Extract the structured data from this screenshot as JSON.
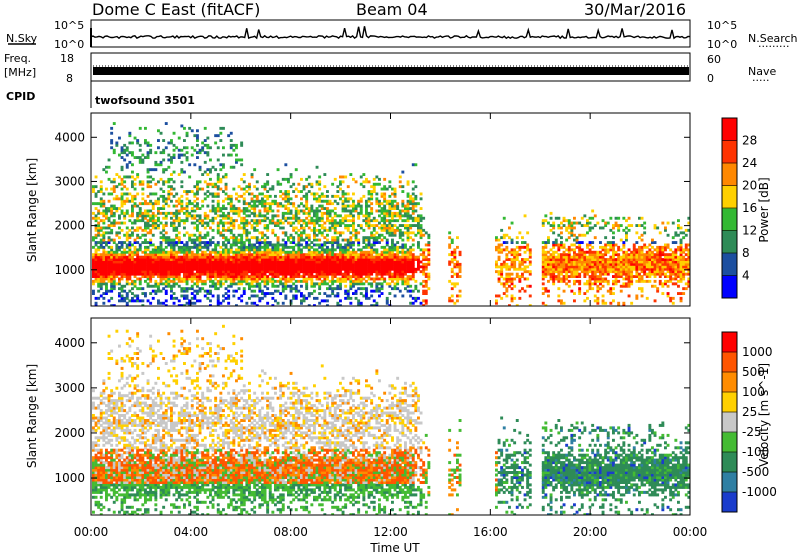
{
  "header": {
    "station": "Dome C East (fitACF)",
    "beam": "Beam 04",
    "date": "30/Mar/2016"
  },
  "panels": {
    "nsky": {
      "left_label": "N.Sky",
      "left_top_tick": "10^5",
      "left_bottom_tick": "10^0",
      "right_top_tick": "10^5",
      "right_bottom_tick": "10^0",
      "right_label": "N.Search",
      "right_dots": "·········"
    },
    "freq": {
      "left_label_1": "Freq.",
      "left_label_2": "[MHz]",
      "left_top_tick": "18",
      "left_bottom_tick": "8",
      "right_top_tick": "60",
      "right_bottom_tick": "0",
      "right_label": "Nave",
      "right_dots": "·····"
    },
    "cpid": {
      "label": "CPID",
      "program": "twofsound 3501"
    }
  },
  "colorbars": {
    "power": {
      "label": "Power [dB]",
      "ticks": [
        "28",
        "24",
        "20",
        "16",
        "12",
        "8",
        "4"
      ],
      "colors": [
        "#0000ff",
        "#1c4fa0",
        "#2e8b57",
        "#33b833",
        "#ffd000",
        "#ff8800",
        "#ff3300",
        "#ff0000"
      ]
    },
    "velocity": {
      "label": "Velocity [m s^-1]",
      "ticks": [
        "1000",
        "500",
        "100",
        "25",
        "-25",
        "-100",
        "-500",
        "-1000"
      ],
      "colors": [
        "#1a3ccc",
        "#2f7fa3",
        "#2e8b57",
        "#44bb33",
        "#c8c8c8",
        "#ffd000",
        "#ff8c00",
        "#ff5500",
        "#ff0000"
      ]
    }
  },
  "chart_data": [
    {
      "type": "heatmap",
      "name": "power",
      "x": [
        "00:00",
        "04:00",
        "08:00",
        "12:00",
        "16:00",
        "20:00",
        "00:00"
      ],
      "ylabel": "Slant Range [km]",
      "yticks": [
        "1000",
        "2000",
        "3000",
        "4000"
      ],
      "ylim": [
        180,
        4550
      ],
      "colorbar_label": "Power [dB]"
    },
    {
      "type": "heatmap",
      "name": "velocity",
      "x": [
        "00:00",
        "04:00",
        "08:00",
        "12:00",
        "16:00",
        "20:00",
        "00:00"
      ],
      "xlabel": "Time UT",
      "ylabel": "Slant Range [km]",
      "yticks": [
        "1000",
        "2000",
        "3000",
        "4000"
      ],
      "ylim": [
        180,
        4550
      ],
      "colorbar_label": "Velocity [m s^-1]"
    }
  ]
}
